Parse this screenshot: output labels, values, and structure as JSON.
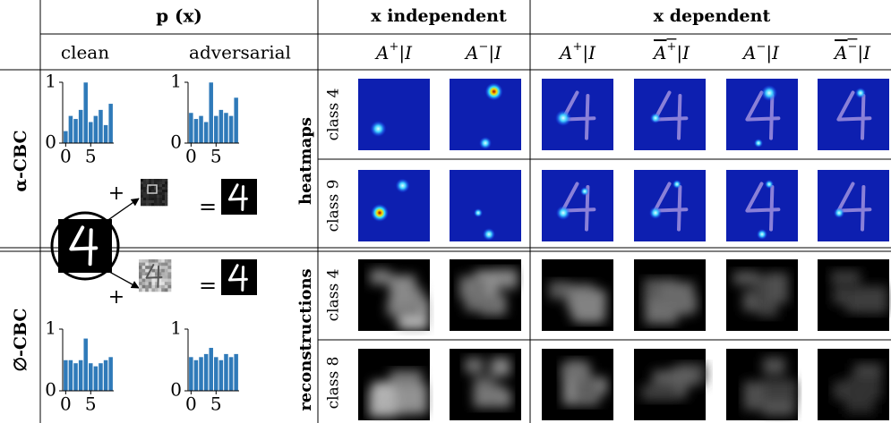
{
  "header": {
    "px": "p (x)",
    "x_independent": "x independent",
    "x_dependent": "x dependent"
  },
  "columns": {
    "clean": "clean",
    "adversarial": "adversarial"
  },
  "attribution_columns": [
    {
      "base": "A",
      "sup": "+",
      "given": "|I",
      "overline": false
    },
    {
      "base": "A",
      "sup": "−",
      "given": "|I",
      "overline": false
    },
    {
      "base": "A",
      "sup": "+",
      "given": "|I",
      "overline": false
    },
    {
      "base": "A",
      "sup": "+",
      "given": "|I",
      "overline": true
    },
    {
      "base": "A",
      "sup": "−",
      "given": "|I",
      "overline": false
    },
    {
      "base": "A",
      "sup": "−",
      "given": "|I",
      "overline": true
    }
  ],
  "rows": [
    {
      "label": "α-CBC"
    },
    {
      "label": "∅-CBC"
    }
  ],
  "sections": [
    {
      "label": "heatmaps",
      "classes": [
        "class 4",
        "class 9"
      ]
    },
    {
      "label": "reconstructions",
      "classes": [
        "class 4",
        "class 8"
      ]
    }
  ],
  "operators": {
    "plus": "+",
    "equals": "="
  },
  "histograms": [
    {
      "type": "bar",
      "color": "#2f7ab9",
      "x": [
        0,
        1,
        2,
        3,
        4,
        5,
        6,
        7,
        8,
        9
      ],
      "values": [
        0.2,
        0.45,
        0.4,
        0.55,
        1.0,
        0.35,
        0.45,
        0.55,
        0.3,
        0.65
      ],
      "xlim": [
        -0.6,
        9.6
      ],
      "xticks": [
        0,
        5
      ],
      "ylim": [
        0,
        1
      ],
      "yticks": [
        0,
        1
      ]
    },
    {
      "type": "bar",
      "color": "#2f7ab9",
      "x": [
        0,
        1,
        2,
        3,
        4,
        5,
        6,
        7,
        8,
        9
      ],
      "values": [
        0.5,
        0.4,
        0.45,
        0.35,
        1.0,
        0.45,
        0.55,
        0.5,
        0.45,
        0.75
      ],
      "xlim": [
        -0.6,
        9.6
      ],
      "xticks": [
        0,
        5
      ],
      "ylim": [
        0,
        1
      ],
      "yticks": [
        0,
        1
      ]
    },
    {
      "type": "bar",
      "color": "#2f7ab9",
      "x": [
        0,
        1,
        2,
        3,
        4,
        5,
        6,
        7,
        8,
        9
      ],
      "values": [
        0.5,
        0.5,
        0.45,
        0.5,
        0.85,
        0.45,
        0.4,
        0.45,
        0.5,
        0.55
      ],
      "xlim": [
        -0.6,
        9.6
      ],
      "xticks": [
        0,
        5
      ],
      "ylim": [
        0,
        1
      ],
      "yticks": [
        0,
        1
      ]
    },
    {
      "type": "bar",
      "color": "#2f7ab9",
      "x": [
        0,
        1,
        2,
        3,
        4,
        5,
        6,
        7,
        8,
        9
      ],
      "values": [
        0.55,
        0.5,
        0.55,
        0.6,
        0.7,
        0.55,
        0.5,
        0.6,
        0.55,
        0.6
      ],
      "xlim": [
        -0.6,
        9.6
      ],
      "xticks": [
        0,
        5
      ],
      "ylim": [
        0,
        1
      ],
      "yticks": [
        0,
        1
      ]
    }
  ]
}
